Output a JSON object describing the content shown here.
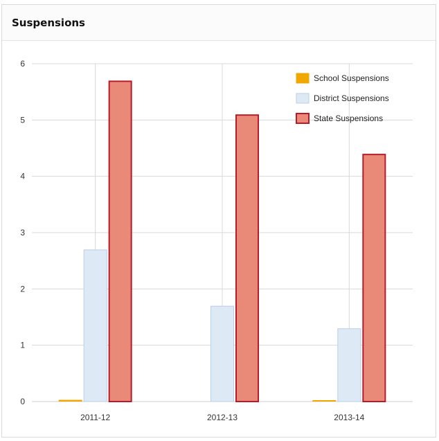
{
  "panel": {
    "title": "Suspensions"
  },
  "colors": {
    "school": "#f0a800",
    "district": "#dde9f5",
    "district_stroke": "#b9cfe4",
    "state": "#e98a78",
    "state_stroke": "#b81a2a",
    "grid": "#d8d8d8"
  },
  "chart_data": {
    "type": "bar",
    "categories": [
      "2011-12",
      "2012-13",
      "2013-14"
    ],
    "series": [
      {
        "name": "School Suspensions",
        "values": [
          0.03,
          0,
          0.02
        ]
      },
      {
        "name": "District Suspensions",
        "values": [
          2.7,
          1.7,
          1.3
        ]
      },
      {
        "name": "State Suspensions",
        "values": [
          5.7,
          5.1,
          4.4
        ]
      }
    ],
    "title": "Suspensions",
    "xlabel": "",
    "ylabel": "",
    "ylim": [
      0,
      6
    ],
    "yticks": [
      "0",
      "1",
      "2",
      "3",
      "4",
      "5",
      "6"
    ],
    "grid": true,
    "legend": "top-right"
  }
}
